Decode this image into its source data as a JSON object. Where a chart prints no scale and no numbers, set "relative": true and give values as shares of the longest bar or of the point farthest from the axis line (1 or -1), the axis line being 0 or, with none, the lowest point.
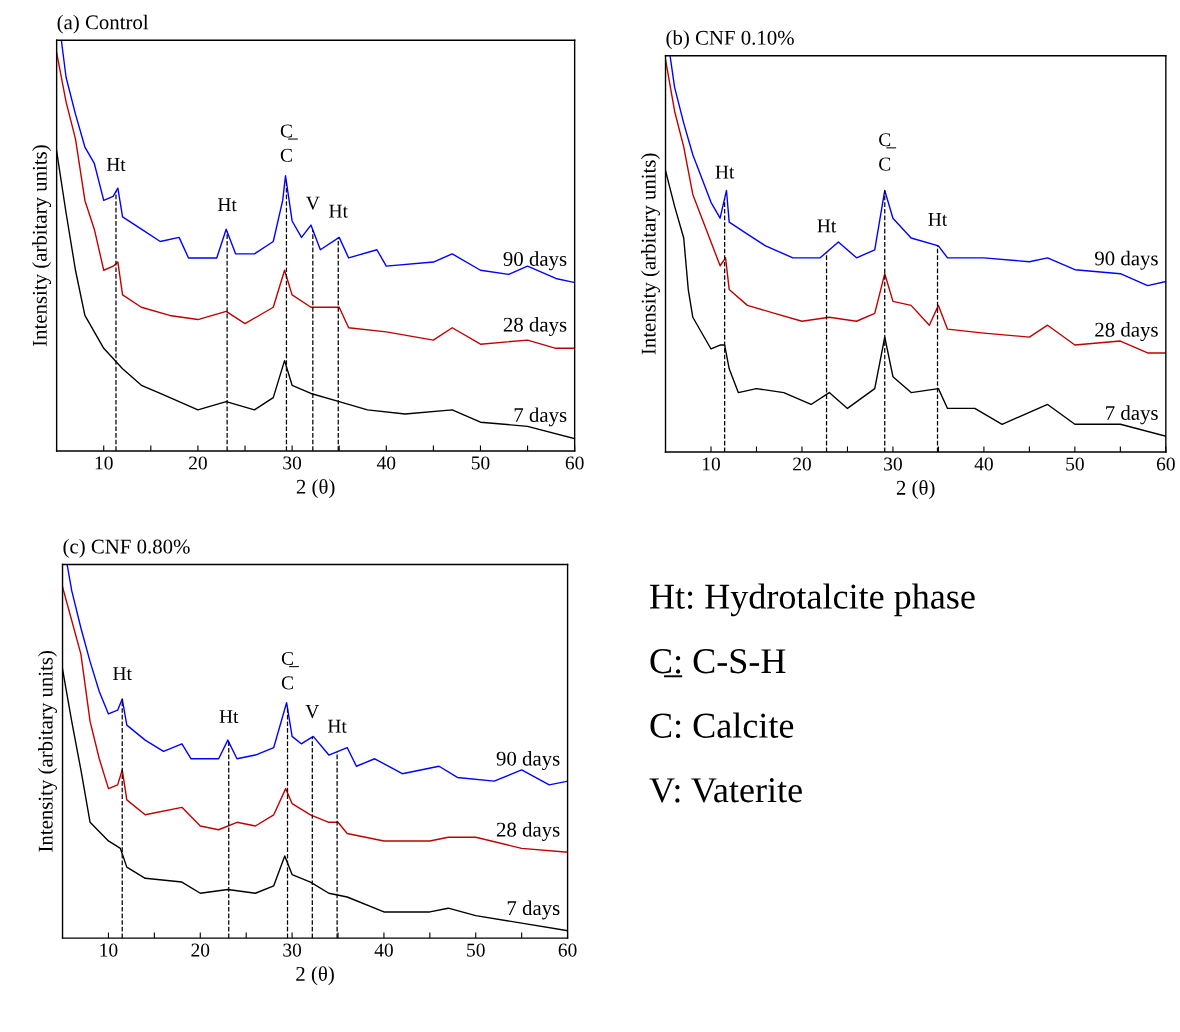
{
  "chart_data": [
    {
      "type": "line",
      "title": "(a) Control",
      "xlabel": "2 (θ)",
      "ylabel": "Intensity (arbitary units)",
      "relative": true,
      "xlim": [
        5,
        60
      ],
      "xticks": [
        10,
        {
          "value": 15,
          "label": null
        },
        20,
        {
          "value": 25,
          "label": null
        },
        30,
        {
          "value": 35,
          "label": null
        },
        40,
        {
          "value": 45,
          "label": null
        },
        50,
        {
          "value": 55,
          "label": null
        },
        60
      ],
      "tick_labels": "x",
      "grid": false,
      "legend": false,
      "line_style": "solid",
      "marker": "none",
      "series": [
        {
          "name": "90 days",
          "color": "#0000ff",
          "x": [
            5.5,
            6,
            7,
            8,
            9,
            10,
            11,
            11.5,
            12,
            14,
            16,
            18,
            19,
            22,
            23,
            24,
            26,
            28,
            29,
            29.3,
            30,
            31,
            32,
            33,
            35,
            36,
            39,
            40,
            45,
            47,
            50,
            53,
            55,
            58,
            60
          ],
          "values": [
            1.0,
            0.91,
            0.82,
            0.74,
            0.7,
            0.61,
            0.62,
            0.64,
            0.57,
            0.54,
            0.51,
            0.52,
            0.47,
            0.47,
            0.54,
            0.48,
            0.48,
            0.51,
            0.61,
            0.67,
            0.56,
            0.52,
            0.55,
            0.49,
            0.52,
            0.47,
            0.49,
            0.45,
            0.46,
            0.48,
            0.44,
            0.43,
            0.45,
            0.42,
            0.41
          ]
        },
        {
          "name": "28 days",
          "color": "#c00000",
          "x": [
            5,
            6,
            7,
            8,
            9,
            10,
            11,
            11.5,
            12,
            14,
            17,
            20,
            23,
            25,
            28,
            29.2,
            30,
            32,
            35,
            36,
            40,
            45,
            47,
            50,
            55,
            58,
            60
          ],
          "values": [
            0.97,
            0.85,
            0.76,
            0.61,
            0.54,
            0.44,
            0.45,
            0.46,
            0.38,
            0.35,
            0.33,
            0.32,
            0.34,
            0.31,
            0.35,
            0.44,
            0.38,
            0.35,
            0.35,
            0.3,
            0.29,
            0.27,
            0.3,
            0.26,
            0.27,
            0.25,
            0.25
          ]
        },
        {
          "name": "7 days",
          "color": "#000000",
          "x": [
            5,
            6,
            7,
            8,
            10,
            12,
            14,
            16,
            20,
            23,
            26,
            28,
            29.2,
            30,
            32,
            35,
            38,
            42,
            47,
            50,
            55,
            60
          ],
          "values": [
            0.73,
            0.58,
            0.44,
            0.33,
            0.25,
            0.2,
            0.16,
            0.14,
            0.1,
            0.12,
            0.1,
            0.13,
            0.22,
            0.16,
            0.14,
            0.12,
            0.1,
            0.09,
            0.1,
            0.07,
            0.06,
            0.03
          ]
        }
      ],
      "ref_lines": [
        {
          "axis": "x",
          "value": 11.3,
          "label": "Ht",
          "line_style": "dashed",
          "color": "#000000"
        },
        {
          "axis": "x",
          "value": 23.1,
          "label": "Ht",
          "line_style": "dashed",
          "color": "#000000"
        },
        {
          "axis": "x",
          "value": 29.4,
          "label": "C̲\nC",
          "line_style": "dashed",
          "color": "#000000"
        },
        {
          "axis": "x",
          "value": 32.2,
          "label": "V",
          "line_style": "dashed",
          "color": "#000000"
        },
        {
          "axis": "x",
          "value": 34.9,
          "label": "Ht",
          "line_style": "dashed",
          "color": "#000000"
        }
      ]
    },
    {
      "type": "line",
      "title": "(b) CNF 0.10%",
      "xlabel": "2 (θ)",
      "ylabel": "Intensity (arbitary units)",
      "relative": true,
      "xlim": [
        5,
        60
      ],
      "xticks": [
        10,
        {
          "value": 15,
          "label": null
        },
        20,
        {
          "value": 25,
          "label": null
        },
        30,
        {
          "value": 35,
          "label": null
        },
        40,
        {
          "value": 45,
          "label": null
        },
        50,
        {
          "value": 55,
          "label": null
        },
        60
      ],
      "tick_labels": "x",
      "grid": false,
      "legend": false,
      "line_style": "solid",
      "marker": "none",
      "series": [
        {
          "name": "90 days",
          "color": "#0000ff",
          "x": [
            5.5,
            6,
            7,
            8,
            9,
            10,
            11,
            11.7,
            12,
            14,
            16,
            19,
            22,
            24,
            26,
            28,
            29.1,
            30,
            32,
            35,
            36,
            40,
            45,
            47,
            50,
            55,
            58,
            60
          ],
          "values": [
            1.0,
            0.92,
            0.83,
            0.75,
            0.69,
            0.63,
            0.59,
            0.66,
            0.58,
            0.55,
            0.52,
            0.49,
            0.49,
            0.53,
            0.49,
            0.51,
            0.66,
            0.59,
            0.54,
            0.52,
            0.49,
            0.49,
            0.48,
            0.49,
            0.46,
            0.45,
            0.42,
            0.43
          ]
        },
        {
          "name": "28 days",
          "color": "#c00000",
          "x": [
            5,
            6,
            7,
            8,
            10,
            11,
            11.6,
            12,
            14,
            17,
            20,
            23,
            26,
            28,
            29.1,
            30,
            32,
            34,
            35,
            36,
            40,
            45,
            47,
            50,
            55,
            58,
            60
          ],
          "values": [
            0.99,
            0.86,
            0.77,
            0.65,
            0.53,
            0.47,
            0.49,
            0.41,
            0.37,
            0.35,
            0.33,
            0.34,
            0.33,
            0.35,
            0.45,
            0.38,
            0.37,
            0.32,
            0.37,
            0.31,
            0.3,
            0.29,
            0.32,
            0.27,
            0.28,
            0.25,
            0.25
          ]
        },
        {
          "name": "7 days",
          "color": "#000000",
          "x": [
            5,
            6,
            7,
            7.5,
            8,
            10,
            11,
            11.5,
            12,
            13,
            15,
            18,
            21,
            23,
            25,
            28,
            29.1,
            30,
            32,
            35,
            36,
            39,
            42,
            47,
            50,
            55,
            60
          ],
          "values": [
            0.71,
            0.62,
            0.54,
            0.41,
            0.34,
            0.26,
            0.27,
            0.27,
            0.21,
            0.15,
            0.16,
            0.15,
            0.12,
            0.15,
            0.11,
            0.16,
            0.29,
            0.19,
            0.15,
            0.16,
            0.11,
            0.11,
            0.07,
            0.12,
            0.07,
            0.07,
            0.04
          ]
        }
      ],
      "ref_lines": [
        {
          "axis": "x",
          "value": 11.5,
          "label": "Ht",
          "line_style": "dashed",
          "color": "#000000"
        },
        {
          "axis": "x",
          "value": 22.7,
          "label": "Ht",
          "line_style": "dashed",
          "color": "#000000"
        },
        {
          "axis": "x",
          "value": 29.1,
          "label": "C̲\nC",
          "line_style": "dashed",
          "color": "#000000"
        },
        {
          "axis": "x",
          "value": 34.9,
          "label": "Ht",
          "line_style": "dashed",
          "color": "#000000"
        }
      ]
    },
    {
      "type": "line",
      "title": "(c) CNF 0.80%",
      "xlabel": "2 (θ)",
      "ylabel": "Intensity (arbitary units)",
      "relative": true,
      "xlim": [
        5,
        60
      ],
      "xticks": [
        10,
        {
          "value": 15,
          "label": null
        },
        20,
        {
          "value": 25,
          "label": null
        },
        30,
        {
          "value": 35,
          "label": null
        },
        40,
        {
          "value": 45,
          "label": null
        },
        50,
        {
          "value": 55,
          "label": null
        },
        60
      ],
      "tick_labels": "x",
      "grid": false,
      "legend": false,
      "line_style": "solid",
      "marker": "none",
      "series": [
        {
          "name": "90 days",
          "color": "#0000ff",
          "x": [
            5.5,
            6,
            7,
            8,
            9,
            10,
            11,
            11.5,
            12,
            14,
            16,
            18,
            19,
            22,
            23,
            24,
            26,
            28,
            29.4,
            30,
            31,
            32.3,
            34,
            36,
            37,
            39,
            42,
            46,
            48,
            52,
            55,
            58,
            60
          ],
          "values": [
            1.0,
            0.93,
            0.83,
            0.74,
            0.66,
            0.6,
            0.61,
            0.64,
            0.57,
            0.53,
            0.5,
            0.52,
            0.48,
            0.48,
            0.53,
            0.48,
            0.49,
            0.51,
            0.63,
            0.54,
            0.52,
            0.54,
            0.49,
            0.51,
            0.46,
            0.48,
            0.44,
            0.46,
            0.43,
            0.42,
            0.45,
            0.41,
            0.42
          ]
        },
        {
          "name": "28 days",
          "color": "#c00000",
          "x": [
            5,
            6,
            7,
            8,
            9,
            10,
            11,
            11.5,
            12,
            14,
            18,
            20,
            22,
            24,
            26,
            28,
            29.3,
            30,
            32,
            34,
            35,
            36,
            40,
            45,
            47,
            50,
            55,
            60
          ],
          "values": [
            0.94,
            0.85,
            0.76,
            0.58,
            0.48,
            0.4,
            0.41,
            0.45,
            0.37,
            0.33,
            0.35,
            0.3,
            0.29,
            0.31,
            0.3,
            0.33,
            0.4,
            0.36,
            0.33,
            0.31,
            0.31,
            0.28,
            0.26,
            0.26,
            0.27,
            0.27,
            0.24,
            0.23
          ]
        },
        {
          "name": "7 days",
          "color": "#000000",
          "x": [
            5,
            6,
            7,
            8,
            10,
            11.3,
            12,
            14,
            18,
            20,
            23,
            26,
            28,
            29.2,
            30,
            32,
            34,
            36,
            40,
            45,
            47,
            50,
            55,
            60
          ],
          "values": [
            0.72,
            0.58,
            0.45,
            0.31,
            0.26,
            0.24,
            0.19,
            0.16,
            0.15,
            0.12,
            0.13,
            0.12,
            0.14,
            0.22,
            0.17,
            0.15,
            0.12,
            0.11,
            0.07,
            0.07,
            0.08,
            0.06,
            0.04,
            0.02
          ]
        }
      ],
      "ref_lines": [
        {
          "axis": "x",
          "value": 11.5,
          "label": "Ht",
          "line_style": "dashed",
          "color": "#000000"
        },
        {
          "axis": "x",
          "value": 23.1,
          "label": "Ht",
          "line_style": "dashed",
          "color": "#000000"
        },
        {
          "axis": "x",
          "value": 29.5,
          "label": "C̲\nC",
          "line_style": "dashed",
          "color": "#000000"
        },
        {
          "axis": "x",
          "value": 32.2,
          "label": "V",
          "line_style": "dashed",
          "color": "#000000"
        },
        {
          "axis": "x",
          "value": 34.9,
          "label": "Ht",
          "line_style": "dashed",
          "color": "#000000"
        }
      ]
    },
    {
      "type": "other",
      "annotations": [
        "Ht: Hydrotalcite phase",
        "C̲: C-S-H",
        "C: Calcite",
        "V: Vaterite"
      ]
    }
  ]
}
